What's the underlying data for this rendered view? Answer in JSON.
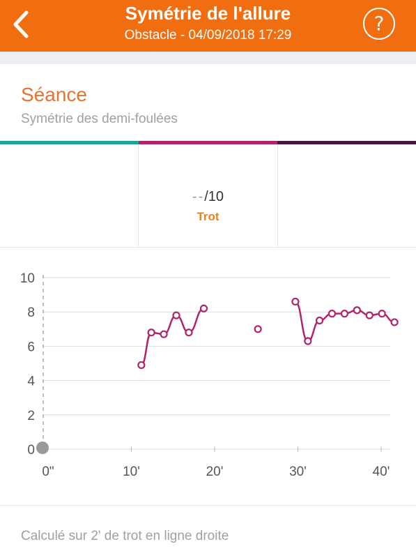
{
  "header": {
    "title": "Symétrie de l'allure",
    "subtitle": "Obstacle - 04/09/2018 17:29",
    "back_icon": "chevron-left-icon",
    "help_label": "?",
    "color": "#f06e0f"
  },
  "section": {
    "title": "Séance",
    "subtitle": "Symétrie des demi-foulées"
  },
  "tab_colors": [
    "#1fa398",
    "#b0246a",
    "#4a1540"
  ],
  "cells": [
    {
      "score": "",
      "gait": ""
    },
    {
      "score_placeholder": "--",
      "score_suffix": "/10",
      "gait": "Trot"
    },
    {
      "score": "",
      "gait": ""
    }
  ],
  "chart_data": {
    "type": "line",
    "x_ticks": [
      "0\"",
      "10'",
      "20'",
      "30'",
      "40'"
    ],
    "x_tick_values": [
      0,
      10,
      20,
      30,
      40
    ],
    "y_ticks": [
      "0",
      "2",
      "4",
      "6",
      "8",
      "10"
    ],
    "ylim": [
      0,
      10
    ],
    "xlim": [
      0,
      42
    ],
    "series": [
      {
        "color": "#b0246a",
        "points": [
          [
            11.2,
            4.9
          ],
          [
            12.4,
            6.8
          ],
          [
            13.9,
            6.7
          ],
          [
            15.4,
            7.8
          ],
          [
            16.9,
            6.8
          ],
          [
            18.7,
            8.2
          ],
          [
            25.2,
            7.0
          ],
          [
            29.7,
            8.6
          ],
          [
            31.2,
            6.3
          ],
          [
            32.6,
            7.5
          ],
          [
            34.1,
            7.9
          ],
          [
            35.6,
            7.9
          ],
          [
            37.1,
            8.1
          ],
          [
            38.6,
            7.8
          ],
          [
            40.1,
            7.9
          ],
          [
            41.6,
            7.4
          ]
        ],
        "segments": [
          [
            0,
            5
          ],
          [
            6,
            6
          ],
          [
            7,
            15
          ]
        ]
      }
    ],
    "grid": true
  },
  "footer": {
    "text": "Calculé sur 2' de trot en ligne droite"
  }
}
